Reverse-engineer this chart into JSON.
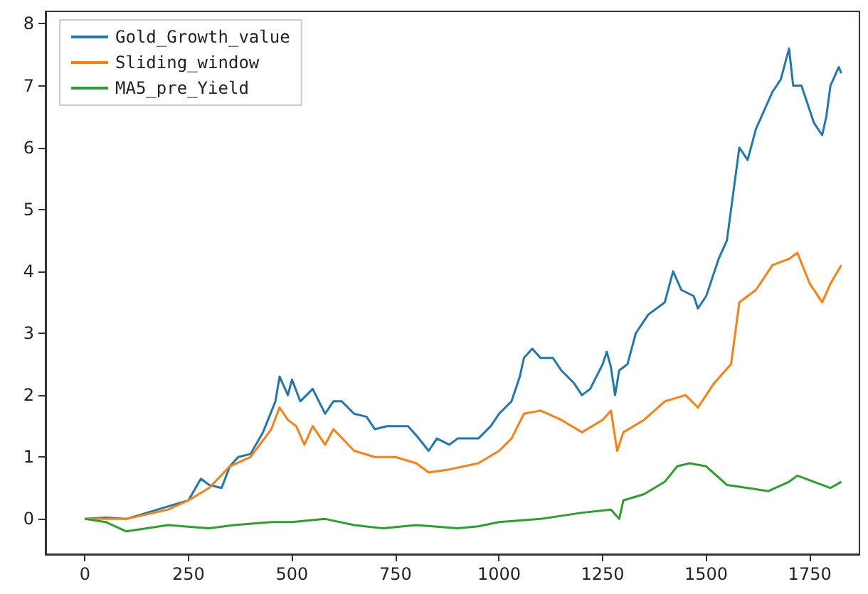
{
  "chart_data": {
    "type": "line",
    "xlim": [
      -95,
      1870
    ],
    "ylim": [
      -0.57,
      8.2
    ],
    "xticks": [
      0,
      250,
      500,
      750,
      1000,
      1250,
      1500,
      1750
    ],
    "yticks": [
      0,
      1,
      2,
      3,
      4,
      5,
      6,
      7,
      8
    ],
    "grid": false,
    "legend": "top left",
    "marker": "none",
    "line_style": "solid",
    "series": [
      {
        "name": "Gold_Growth_value",
        "color": "#1f77b4",
        "x": [
          0,
          50,
          100,
          150,
          200,
          250,
          280,
          300,
          330,
          350,
          370,
          400,
          430,
          460,
          470,
          490,
          500,
          520,
          550,
          580,
          600,
          620,
          650,
          680,
          700,
          730,
          780,
          800,
          830,
          850,
          880,
          900,
          950,
          980,
          1000,
          1030,
          1050,
          1060,
          1080,
          1100,
          1130,
          1150,
          1180,
          1200,
          1220,
          1250,
          1260,
          1270,
          1280,
          1290,
          1310,
          1330,
          1360,
          1400,
          1420,
          1440,
          1470,
          1480,
          1500,
          1530,
          1550,
          1560,
          1580,
          1600,
          1620,
          1640,
          1660,
          1680,
          1700,
          1710,
          1730,
          1760,
          1780,
          1790,
          1800,
          1820,
          1826
        ],
        "values": [
          0,
          0.02,
          0,
          0.1,
          0.2,
          0.3,
          0.65,
          0.55,
          0.5,
          0.85,
          1.0,
          1.05,
          1.4,
          1.9,
          2.3,
          2.0,
          2.25,
          1.9,
          2.1,
          1.7,
          1.9,
          1.9,
          1.7,
          1.65,
          1.45,
          1.5,
          1.5,
          1.35,
          1.1,
          1.3,
          1.2,
          1.3,
          1.3,
          1.5,
          1.7,
          1.9,
          2.3,
          2.6,
          2.75,
          2.6,
          2.6,
          2.4,
          2.2,
          2.0,
          2.1,
          2.5,
          2.7,
          2.45,
          2.0,
          2.4,
          2.5,
          3.0,
          3.3,
          3.5,
          4.0,
          3.7,
          3.6,
          3.4,
          3.6,
          4.2,
          4.5,
          5.0,
          6.0,
          5.8,
          6.3,
          6.6,
          6.9,
          7.1,
          7.6,
          7.0,
          7.0,
          6.4,
          6.2,
          6.5,
          7.0,
          7.3,
          7.2
        ]
      },
      {
        "name": "Sliding_window",
        "color": "#ff7f0e",
        "x": [
          0,
          100,
          200,
          250,
          300,
          350,
          400,
          450,
          470,
          490,
          510,
          530,
          550,
          580,
          600,
          650,
          700,
          750,
          800,
          830,
          880,
          950,
          1000,
          1030,
          1060,
          1100,
          1150,
          1200,
          1250,
          1270,
          1285,
          1300,
          1350,
          1400,
          1450,
          1480,
          1520,
          1560,
          1580,
          1620,
          1660,
          1700,
          1720,
          1750,
          1780,
          1800,
          1826
        ],
        "values": [
          0,
          0,
          0.15,
          0.3,
          0.5,
          0.85,
          1.0,
          1.45,
          1.8,
          1.6,
          1.5,
          1.2,
          1.5,
          1.2,
          1.45,
          1.1,
          1.0,
          1.0,
          0.9,
          0.75,
          0.8,
          0.9,
          1.1,
          1.3,
          1.7,
          1.75,
          1.6,
          1.4,
          1.6,
          1.75,
          1.1,
          1.4,
          1.6,
          1.9,
          2.0,
          1.8,
          2.2,
          2.5,
          3.5,
          3.7,
          4.1,
          4.2,
          4.3,
          3.8,
          3.5,
          3.8,
          4.1
        ]
      },
      {
        "name": "MA5_pre_Yield",
        "color": "#2ca02c",
        "x": [
          0,
          50,
          100,
          150,
          200,
          300,
          360,
          450,
          500,
          580,
          650,
          720,
          800,
          900,
          950,
          1000,
          1100,
          1200,
          1270,
          1290,
          1300,
          1350,
          1400,
          1430,
          1460,
          1500,
          1550,
          1600,
          1650,
          1700,
          1720,
          1760,
          1800,
          1826
        ],
        "values": [
          0,
          -0.05,
          -0.2,
          -0.15,
          -0.1,
          -0.15,
          -0.1,
          -0.05,
          -0.05,
          0,
          -0.1,
          -0.15,
          -0.1,
          -0.15,
          -0.12,
          -0.05,
          0,
          0.1,
          0.15,
          0,
          0.3,
          0.4,
          0.6,
          0.85,
          0.9,
          0.85,
          0.55,
          0.5,
          0.45,
          0.6,
          0.7,
          0.6,
          0.5,
          0.6
        ]
      }
    ]
  }
}
